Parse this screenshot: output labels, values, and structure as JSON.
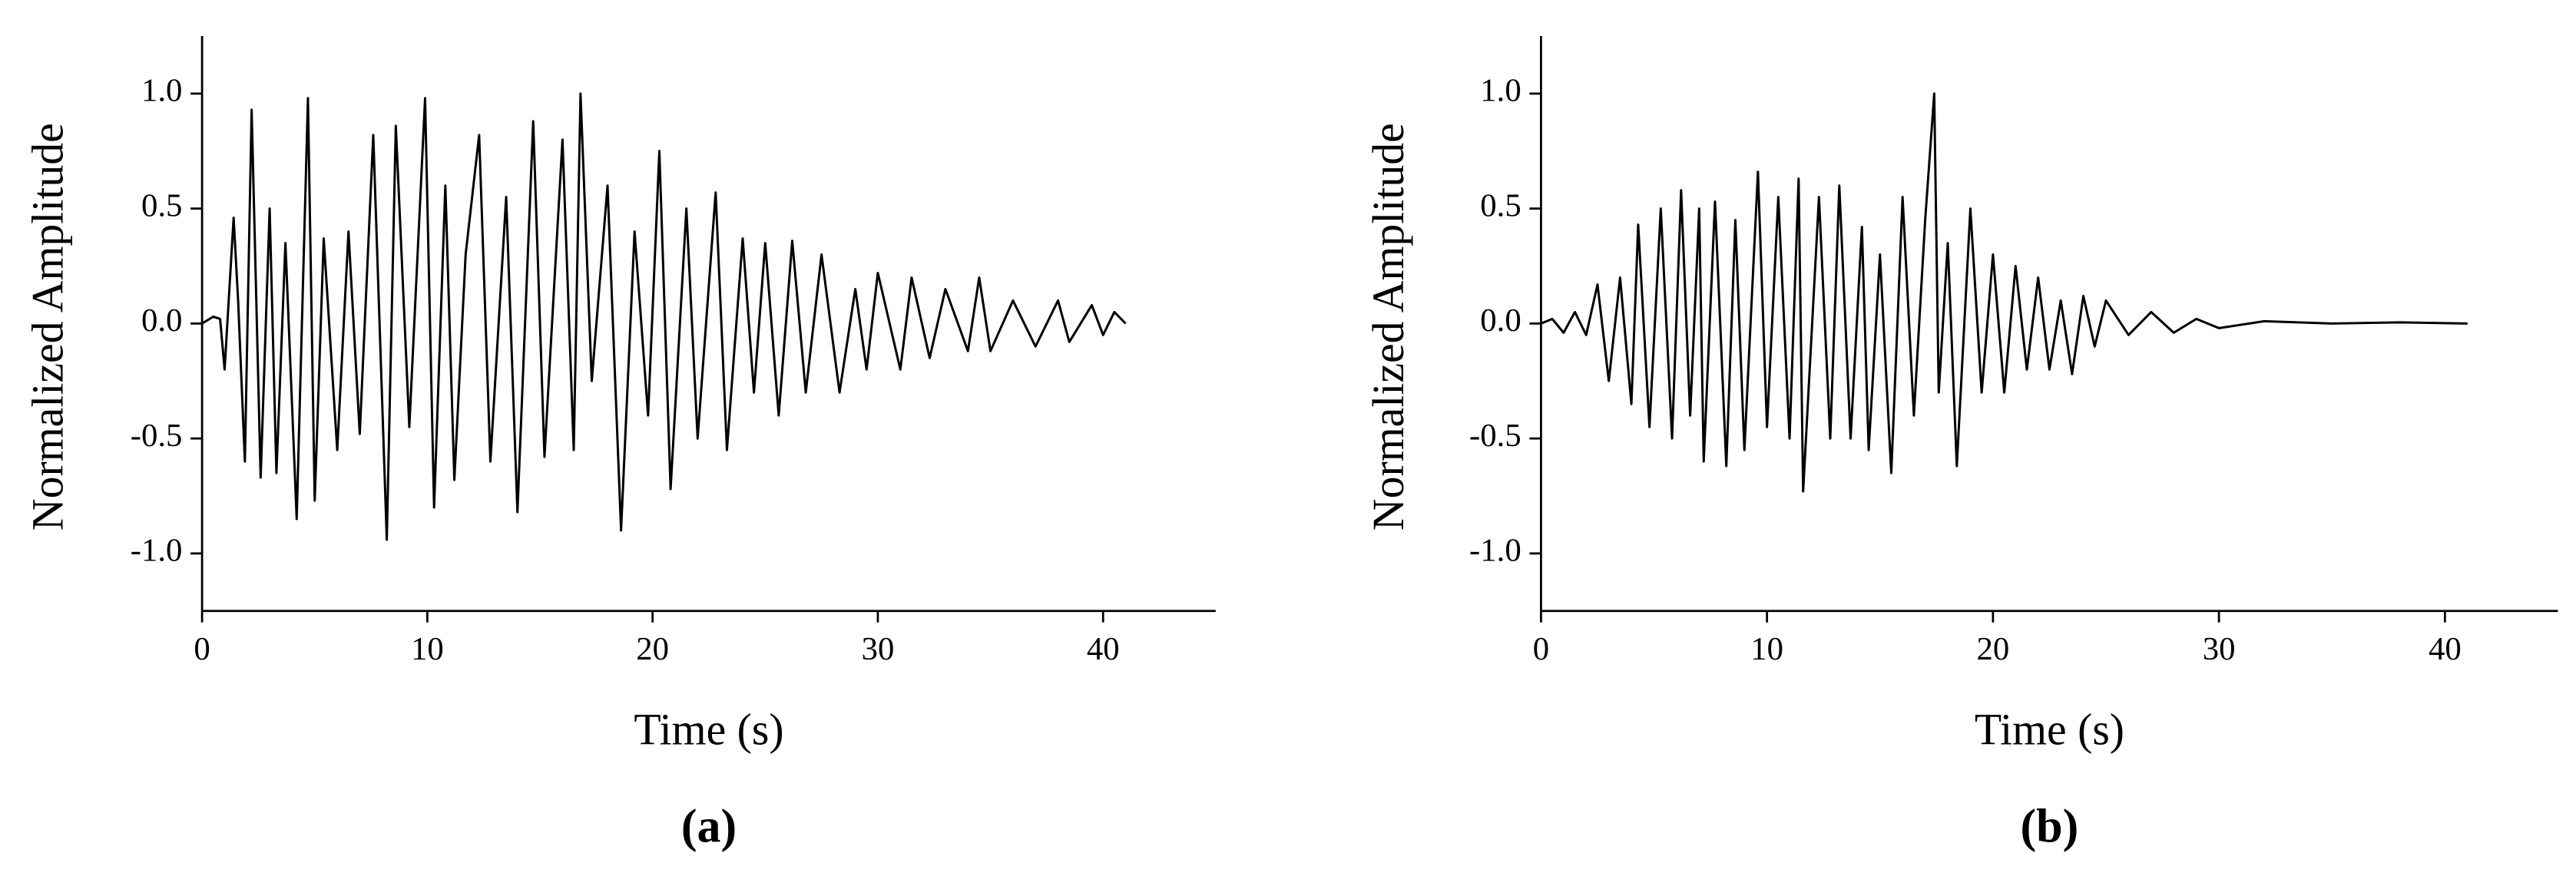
{
  "chart_data": [
    {
      "type": "line",
      "caption": "(a)",
      "xlabel": "Time (s)",
      "ylabel": "Normalized Amplitude",
      "color": "#000000",
      "xlim": [
        0,
        45
      ],
      "ylim": [
        -1.25,
        1.25
      ],
      "xticks": [
        0,
        10,
        20,
        30,
        40
      ],
      "yticks": [
        {
          "value": -1,
          "label": "-1.0"
        },
        {
          "value": -0.5,
          "label": "-0.5"
        },
        {
          "value": 0,
          "label": "0.0"
        },
        {
          "value": 0.5,
          "label": "0.5"
        },
        {
          "value": 1,
          "label": "1.0"
        }
      ],
      "x": [
        0,
        0.5,
        0.8,
        1.0,
        1.4,
        1.6,
        1.9,
        2.2,
        2.6,
        3.0,
        3.3,
        3.7,
        4.2,
        4.7,
        5.0,
        5.4,
        6.0,
        6.5,
        7.0,
        7.6,
        8.2,
        8.6,
        9.2,
        9.9,
        10.3,
        10.8,
        11.2,
        11.7,
        12.3,
        12.8,
        13.5,
        14.0,
        14.7,
        15.2,
        16.0,
        16.5,
        16.8,
        17.3,
        18.0,
        18.6,
        19.2,
        19.8,
        20.3,
        20.8,
        21.5,
        22.0,
        22.8,
        23.3,
        24.0,
        24.5,
        25.0,
        25.6,
        26.2,
        26.8,
        27.5,
        28.3,
        29.0,
        29.5,
        30.0,
        31.0,
        31.5,
        32.3,
        33.0,
        34.0,
        34.5,
        35.0,
        36.0,
        37.0,
        38.0,
        38.5,
        39.5,
        40.0,
        40.5,
        41.0
      ],
      "values": [
        0,
        0.03,
        0.02,
        -0.2,
        0.46,
        0.1,
        -0.6,
        0.93,
        -0.67,
        0.5,
        -0.65,
        0.35,
        -0.85,
        0.98,
        -0.77,
        0.37,
        -0.55,
        0.4,
        -0.48,
        0.82,
        -0.94,
        0.86,
        -0.45,
        0.98,
        -0.8,
        0.6,
        -0.68,
        0.3,
        0.82,
        -0.6,
        0.55,
        -0.82,
        0.88,
        -0.58,
        0.8,
        -0.55,
        1.0,
        -0.25,
        0.6,
        -0.9,
        0.4,
        -0.4,
        0.75,
        -0.72,
        0.5,
        -0.5,
        0.57,
        -0.55,
        0.37,
        -0.3,
        0.35,
        -0.4,
        0.36,
        -0.3,
        0.3,
        -0.3,
        0.15,
        -0.2,
        0.22,
        -0.2,
        0.2,
        -0.15,
        0.15,
        -0.12,
        0.2,
        -0.12,
        0.1,
        -0.1,
        0.1,
        -0.08,
        0.08,
        -0.05,
        0.05,
        0
      ]
    },
    {
      "type": "line",
      "caption": "(b)",
      "xlabel": "Time (s)",
      "ylabel": "Normalized Amplitude",
      "color": "#000000",
      "xlim": [
        0,
        45
      ],
      "ylim": [
        -1.25,
        1.25
      ],
      "xticks": [
        0,
        10,
        20,
        30,
        40
      ],
      "yticks": [
        {
          "value": -1,
          "label": "-1.0"
        },
        {
          "value": -0.5,
          "label": "-0.5"
        },
        {
          "value": 0,
          "label": "0.0"
        },
        {
          "value": 0.5,
          "label": "0.5"
        },
        {
          "value": 1,
          "label": "1.0"
        }
      ],
      "x": [
        0,
        0.5,
        1.0,
        1.5,
        2.0,
        2.5,
        3.0,
        3.5,
        4.0,
        4.3,
        4.8,
        5.3,
        5.8,
        6.2,
        6.6,
        7.0,
        7.2,
        7.7,
        8.2,
        8.6,
        9.0,
        9.6,
        10.0,
        10.5,
        11.0,
        11.4,
        11.6,
        12.3,
        12.8,
        13.2,
        13.7,
        14.2,
        14.5,
        15.0,
        15.5,
        16.0,
        16.5,
        17.0,
        17.4,
        17.6,
        18.0,
        18.4,
        19.0,
        19.5,
        20.0,
        20.5,
        21.0,
        21.5,
        22.0,
        22.5,
        23.0,
        23.5,
        24.0,
        24.5,
        25.0,
        26.0,
        27.0,
        28.0,
        29.0,
        30.0,
        32.0,
        35.0,
        38.0,
        41.0
      ],
      "values": [
        0,
        0.02,
        -0.04,
        0.05,
        -0.05,
        0.17,
        -0.25,
        0.2,
        -0.35,
        0.43,
        -0.45,
        0.5,
        -0.5,
        0.58,
        -0.4,
        0.5,
        -0.6,
        0.53,
        -0.62,
        0.45,
        -0.55,
        0.66,
        -0.45,
        0.55,
        -0.5,
        0.63,
        -0.73,
        0.55,
        -0.5,
        0.6,
        -0.5,
        0.42,
        -0.55,
        0.3,
        -0.65,
        0.55,
        -0.4,
        0.45,
        1.0,
        -0.3,
        0.35,
        -0.62,
        0.5,
        -0.3,
        0.3,
        -0.3,
        0.25,
        -0.2,
        0.2,
        -0.2,
        0.1,
        -0.22,
        0.12,
        -0.1,
        0.1,
        -0.05,
        0.05,
        -0.04,
        0.02,
        -0.02,
        0.01,
        0,
        0.005,
        0
      ]
    }
  ]
}
